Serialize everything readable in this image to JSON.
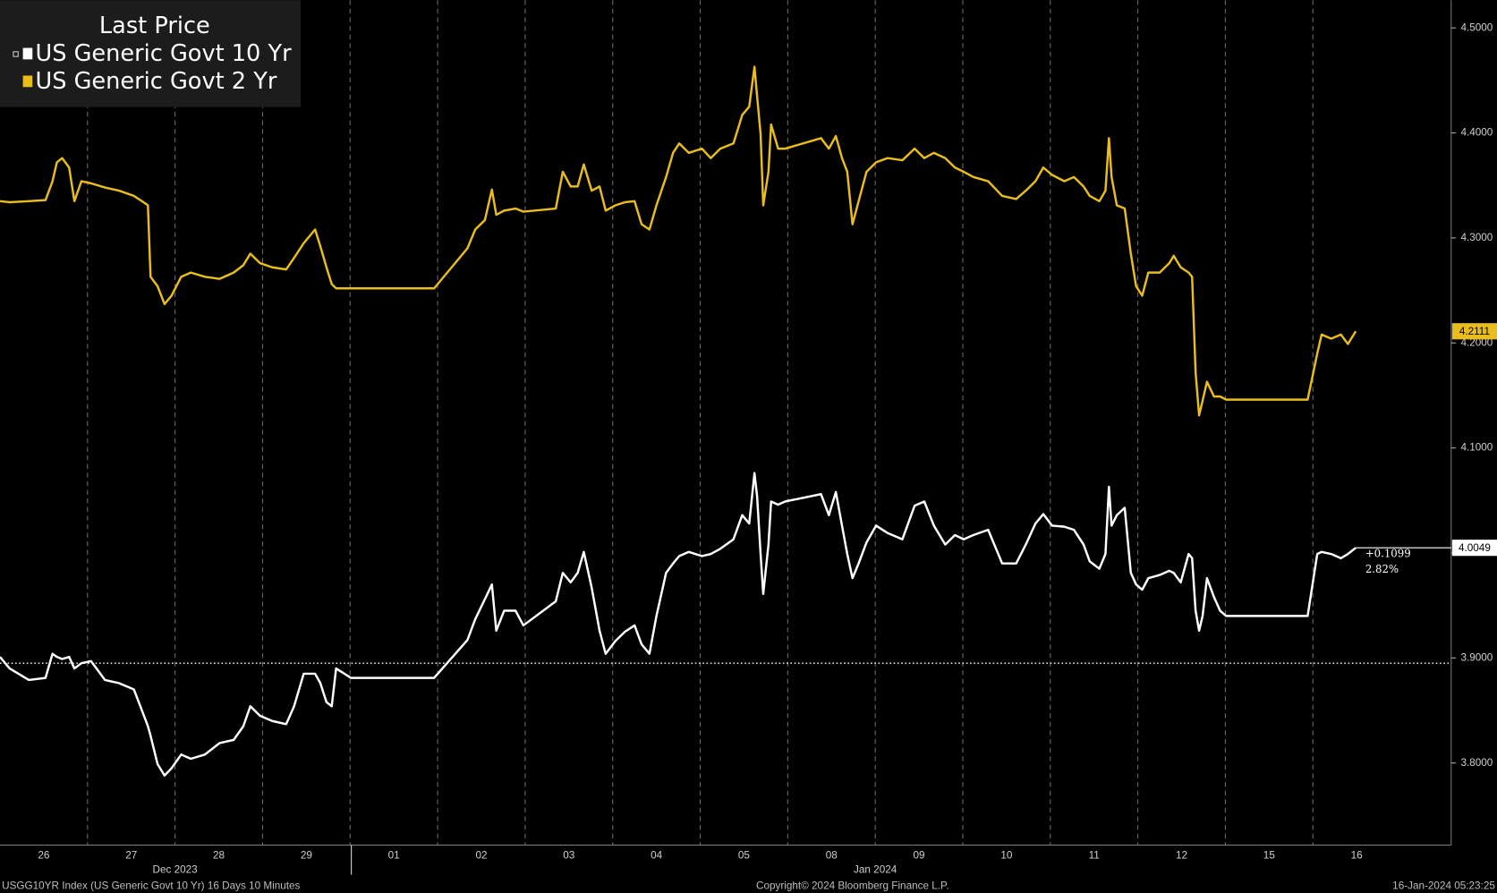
{
  "chart_data": {
    "type": "line",
    "legend_title": "Last Price",
    "x": [
      0,
      0.11,
      0.33,
      0.52,
      0.6,
      0.65,
      0.71,
      0.79,
      0.85,
      0.93,
      1.04,
      1.2,
      1.36,
      1.53,
      1.64,
      1.69,
      1.72,
      1.8,
      1.88,
      1.96,
      2.07,
      2.18,
      2.34,
      2.51,
      2.67,
      2.78,
      2.86,
      2.97,
      3.11,
      3.27,
      3.36,
      3.47,
      3.6,
      3.66,
      3.73,
      3.79,
      3.84,
      4.01,
      4.96,
      5.34,
      5.43,
      5.54,
      5.62,
      5.67,
      5.76,
      5.89,
      5.98,
      6.35,
      6.43,
      6.52,
      6.6,
      6.67,
      6.76,
      6.85,
      6.92,
      7.03,
      7.14,
      7.25,
      7.33,
      7.42,
      7.5,
      7.61,
      7.69,
      7.76,
      7.87,
      8.02,
      8.12,
      8.23,
      8.38,
      8.48,
      8.56,
      8.62,
      8.65,
      8.69,
      8.72,
      8.78,
      8.81,
      8.89,
      8.97,
      9.38,
      9.47,
      9.55,
      9.62,
      9.68,
      9.74,
      9.81,
      9.9,
      10.01,
      10.14,
      10.31,
      10.45,
      10.56,
      10.67,
      10.8,
      10.91,
      11.01,
      11.12,
      11.29,
      11.45,
      11.61,
      11.72,
      11.83,
      11.92,
      12.02,
      12.16,
      12.27,
      12.38,
      12.45,
      12.56,
      12.63,
      12.67,
      12.7,
      12.76,
      12.85,
      12.92,
      12.98,
      13.05,
      13.12,
      13.25,
      13.36,
      13.41,
      13.49,
      13.58,
      13.62,
      13.66,
      13.7,
      13.74,
      13.79,
      13.87,
      13.94,
      14.01,
      14.94,
      15.05,
      15.1,
      15.21,
      15.32,
      15.4,
      15.49
    ],
    "series": [
      {
        "name": "US Generic Govt 10 Yr",
        "color": "#ffffff",
        "values": [
          3.901,
          3.89,
          3.879,
          3.881,
          3.904,
          3.901,
          3.899,
          3.901,
          3.89,
          3.895,
          3.897,
          3.879,
          3.876,
          3.87,
          3.846,
          3.835,
          3.826,
          3.799,
          3.788,
          3.795,
          3.808,
          3.804,
          3.808,
          3.819,
          3.822,
          3.835,
          3.854,
          3.845,
          3.84,
          3.837,
          3.854,
          3.885,
          3.885,
          3.876,
          3.858,
          3.854,
          3.89,
          3.881,
          3.881,
          3.917,
          3.937,
          3.956,
          3.97,
          3.926,
          3.945,
          3.945,
          3.931,
          3.954,
          3.981,
          3.972,
          3.981,
          4.001,
          3.967,
          3.926,
          3.904,
          3.916,
          3.925,
          3.931,
          3.913,
          3.904,
          3.94,
          3.981,
          3.99,
          3.997,
          4.001,
          3.997,
          3.999,
          4.004,
          4.013,
          4.036,
          4.028,
          4.076,
          4.054,
          3.999,
          3.961,
          4.008,
          4.049,
          4.046,
          4.049,
          4.056,
          4.036,
          4.058,
          4.026,
          3.999,
          3.976,
          3.99,
          4.01,
          4.026,
          4.019,
          4.013,
          4.045,
          4.049,
          4.026,
          4.008,
          4.017,
          4.013,
          4.017,
          4.022,
          3.99,
          3.99,
          4.008,
          4.028,
          4.037,
          4.026,
          4.025,
          4.022,
          4.008,
          3.992,
          3.985,
          3.999,
          4.063,
          4.026,
          4.036,
          4.043,
          3.981,
          3.97,
          3.965,
          3.976,
          3.979,
          3.983,
          3.981,
          3.972,
          3.999,
          3.995,
          3.945,
          3.926,
          3.94,
          3.976,
          3.958,
          3.945,
          3.94,
          3.94,
          3.999,
          4.001,
          3.999,
          3.995,
          3.999,
          4.0049
        ]
      },
      {
        "name": "US Generic Govt 2 Yr",
        "color": "#e8bd1c",
        "values": [
          4.335,
          4.334,
          4.335,
          4.336,
          4.354,
          4.372,
          4.376,
          4.367,
          4.335,
          4.354,
          4.352,
          4.348,
          4.345,
          4.34,
          4.334,
          4.331,
          4.263,
          4.254,
          4.237,
          4.245,
          4.263,
          4.267,
          4.263,
          4.261,
          4.267,
          4.274,
          4.285,
          4.276,
          4.272,
          4.27,
          4.281,
          4.295,
          4.308,
          4.292,
          4.272,
          4.256,
          4.252,
          4.252,
          4.252,
          4.29,
          4.308,
          4.317,
          4.346,
          4.322,
          4.326,
          4.328,
          4.325,
          4.328,
          4.363,
          4.349,
          4.349,
          4.37,
          4.345,
          4.349,
          4.326,
          4.331,
          4.334,
          4.335,
          4.313,
          4.308,
          4.331,
          4.358,
          4.381,
          4.39,
          4.381,
          4.385,
          4.376,
          4.385,
          4.39,
          4.417,
          4.425,
          4.463,
          4.435,
          4.399,
          4.331,
          4.363,
          4.408,
          4.385,
          4.385,
          4.395,
          4.385,
          4.397,
          4.376,
          4.363,
          4.313,
          4.335,
          4.363,
          4.372,
          4.376,
          4.374,
          4.385,
          4.376,
          4.381,
          4.376,
          4.367,
          4.363,
          4.358,
          4.354,
          4.34,
          4.337,
          4.345,
          4.354,
          4.367,
          4.36,
          4.354,
          4.358,
          4.349,
          4.34,
          4.335,
          4.345,
          4.395,
          4.358,
          4.331,
          4.328,
          4.285,
          4.254,
          4.245,
          4.267,
          4.267,
          4.276,
          4.283,
          4.272,
          4.267,
          4.263,
          4.172,
          4.131,
          4.145,
          4.163,
          4.149,
          4.149,
          4.146,
          4.146,
          4.19,
          4.208,
          4.204,
          4.208,
          4.199,
          4.2111
        ]
      }
    ],
    "xlim": [
      0,
      16.58
    ],
    "xticks": [
      {
        "value": 0,
        "label": "26"
      },
      {
        "value": 1,
        "label": "27"
      },
      {
        "value": 2,
        "label": "28"
      },
      {
        "value": 3,
        "label": "29"
      },
      {
        "value": 4,
        "label": "01"
      },
      {
        "value": 5,
        "label": "02"
      },
      {
        "value": 6,
        "label": "03"
      },
      {
        "value": 7,
        "label": "04"
      },
      {
        "value": 8,
        "label": "05"
      },
      {
        "value": 9,
        "label": "08"
      },
      {
        "value": 10,
        "label": "09"
      },
      {
        "value": 11,
        "label": "10"
      },
      {
        "value": 12,
        "label": "11"
      },
      {
        "value": 13,
        "label": "12"
      },
      {
        "value": 14,
        "label": "15"
      },
      {
        "value": 15,
        "label": "16"
      }
    ],
    "month_labels": [
      {
        "value": 2.0,
        "label": "Dec 2023"
      },
      {
        "value": 10.0,
        "label": "Jan 2024"
      }
    ],
    "ylim": [
      3.7218,
      4.5264
    ],
    "yticks": [
      {
        "value": 3.8,
        "label": "3.8000"
      },
      {
        "value": 3.9,
        "label": "3.9000"
      },
      {
        "value": 4.0,
        "label": "4.0000"
      },
      {
        "value": 4.1,
        "label": "4.1000"
      },
      {
        "value": 4.2,
        "label": "4.2000"
      },
      {
        "value": 4.3,
        "label": "4.3000"
      },
      {
        "value": 4.4,
        "label": "4.4000"
      },
      {
        "value": 4.5,
        "label": "4.5000"
      }
    ],
    "grid": "x-dashed",
    "reference_line": 3.895,
    "change_label": "+0.1099",
    "change_pct_label": "2.82%",
    "footer": {
      "left": "USGG10YR Index (US Generic Govt 10 Yr) 16 Days 10 Minutes",
      "center": "Copyright© 2024 Bloomberg Finance L.P.",
      "right": "16-Jan-2024 05:23:25"
    }
  }
}
